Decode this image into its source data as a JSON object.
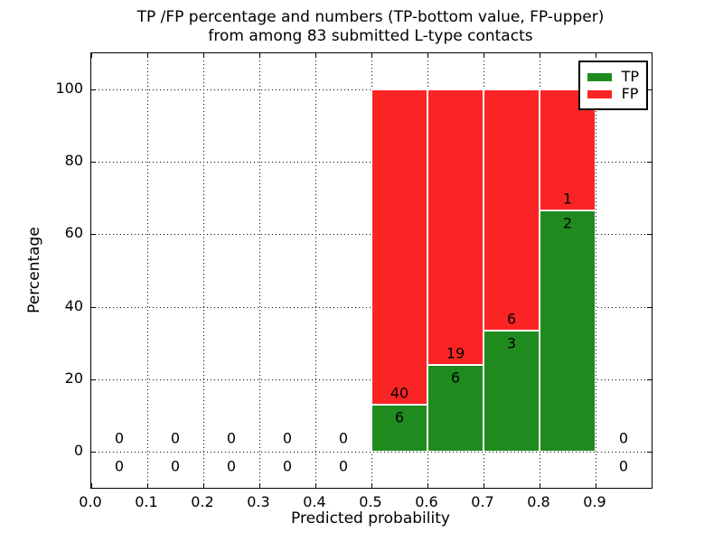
{
  "chart_data": {
    "type": "bar",
    "stacked": true,
    "title_line1": "TP /FP percentage and numbers (TP-bottom value, FP-upper)",
    "title_line2": "from among 83 submitted L-type contacts",
    "xlabel": "Predicted probability",
    "ylabel": "Percentage",
    "total_submitted_contacts": 83,
    "xlim": [
      0.0,
      1.0
    ],
    "ylim": [
      -10,
      110
    ],
    "grid": true,
    "x_tick_values": [
      0.0,
      0.1,
      0.2,
      0.3,
      0.4,
      0.5,
      0.6,
      0.7,
      0.8,
      0.9
    ],
    "x_tick_labels": [
      "0.0",
      "0.1",
      "0.2",
      "0.3",
      "0.4",
      "0.5",
      "0.6",
      "0.7",
      "0.8",
      "0.9"
    ],
    "y_tick_values": [
      0,
      20,
      40,
      60,
      80,
      100
    ],
    "y_tick_labels": [
      "0",
      "20",
      "40",
      "60",
      "80",
      "100"
    ],
    "colors": {
      "tp": "#1f8b1f",
      "fp": "#fb2424"
    },
    "legend": {
      "position": "upper-right",
      "entries": [
        {
          "key": "tp",
          "label": "TP",
          "color": "#1f8b1f"
        },
        {
          "key": "fp",
          "label": "FP",
          "color": "#fb2424"
        }
      ]
    },
    "bars": [
      {
        "x_start": 0.5,
        "x_end": 0.6,
        "tp_count": 6,
        "fp_count": 40,
        "tp_percent": 13.0,
        "fp_percent": 87.0
      },
      {
        "x_start": 0.6,
        "x_end": 0.7,
        "tp_count": 6,
        "fp_count": 19,
        "tp_percent": 24.0,
        "fp_percent": 76.0
      },
      {
        "x_start": 0.7,
        "x_end": 0.8,
        "tp_count": 3,
        "fp_count": 6,
        "tp_percent": 33.3,
        "fp_percent": 66.7
      },
      {
        "x_start": 0.8,
        "x_end": 0.9,
        "tp_count": 2,
        "fp_count": 1,
        "tp_percent": 66.7,
        "fp_percent": 33.3
      }
    ],
    "zero_bins": [
      {
        "x_center": 0.05,
        "fp_count": 0,
        "tp_count": 0
      },
      {
        "x_center": 0.15,
        "fp_count": 0,
        "tp_count": 0
      },
      {
        "x_center": 0.25,
        "fp_count": 0,
        "tp_count": 0
      },
      {
        "x_center": 0.35,
        "fp_count": 0,
        "tp_count": 0
      },
      {
        "x_center": 0.45,
        "fp_count": 0,
        "tp_count": 0
      },
      {
        "x_center": 0.95,
        "fp_count": 0,
        "tp_count": 0
      }
    ]
  }
}
